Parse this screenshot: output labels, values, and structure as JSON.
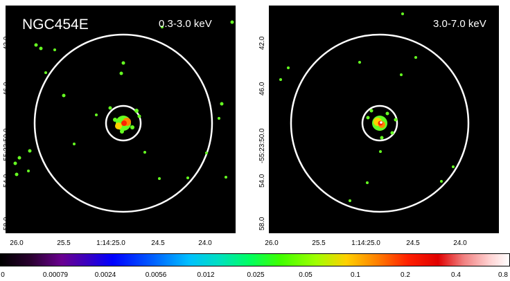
{
  "panels": [
    {
      "name": "NGC454E",
      "energy": "0.3-3.0 keV",
      "y_ticks": [
        "42.0",
        "46.0",
        "-55:23:50.0",
        "54.0",
        "58.0"
      ],
      "x_ticks": [
        "26.0",
        "25.5",
        "1:14:25.0",
        "24.5",
        "24.0"
      ]
    },
    {
      "name": "",
      "energy": "3.0-7.0 keV",
      "y_ticks": [
        "42.0",
        "46.0",
        "-55:23:50.0",
        "54.0",
        "58.0"
      ],
      "x_ticks": [
        "26.0",
        "25.5",
        "1:14:25.0",
        "24.5",
        "24.0"
      ]
    }
  ],
  "colorbar": {
    "ticks": [
      "0",
      "0.00079",
      "0.0024",
      "0.0056",
      "0.012",
      "0.025",
      "0.05",
      "0.1",
      "0.2",
      "0.4",
      "0.8"
    ]
  },
  "colors": {
    "background": "#000000",
    "circle": "#ffffff",
    "source_green": "#66ff22",
    "source_core": "#ff2200"
  }
}
